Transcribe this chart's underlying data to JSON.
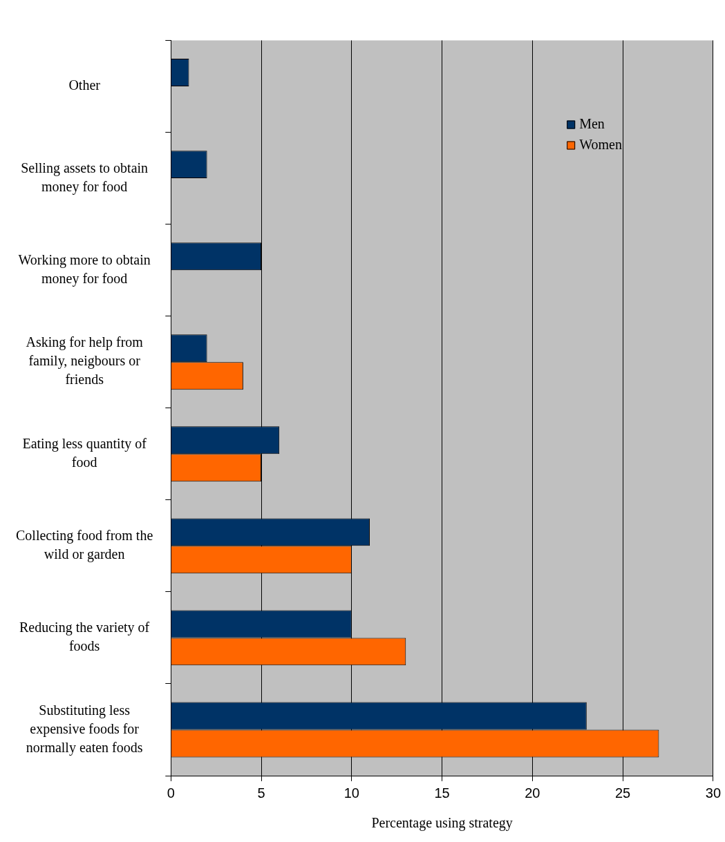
{
  "chart_data": {
    "type": "bar",
    "orientation": "horizontal",
    "xlabel": "Percentage using strategy",
    "categories": [
      "Other",
      "Selling assets to obtain money for food",
      "Working more to obtain money for food",
      "Asking for help from family, neigbours or friends",
      "Eating less quantity of food",
      "Collecting food from the wild or garden",
      "Reducing the variety of foods",
      "Substituting less expensive foods for normally eaten foods"
    ],
    "series": [
      {
        "name": "Men",
        "color": "#003366",
        "values": [
          1,
          2,
          5,
          2,
          6,
          11,
          10,
          23
        ]
      },
      {
        "name": "Women",
        "color": "#ff6600",
        "values": [
          null,
          null,
          null,
          4,
          5,
          10,
          13,
          27
        ]
      }
    ],
    "xlim": [
      0,
      30
    ],
    "xticks": [
      0,
      5,
      10,
      15,
      20,
      25,
      30
    ],
    "grid": "x",
    "legend": "top right"
  }
}
